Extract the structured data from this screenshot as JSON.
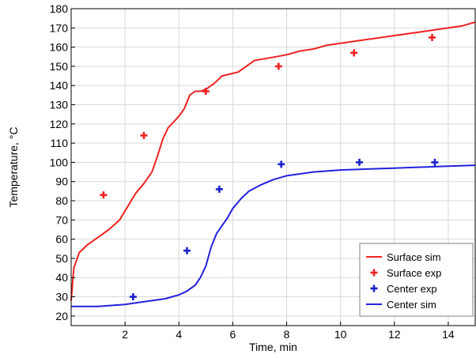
{
  "chart_data": {
    "type": "line",
    "title": "",
    "xlabel": "Time, min",
    "ylabel": "Temperature, °C",
    "xlim": [
      0,
      15
    ],
    "ylim": [
      15,
      180
    ],
    "xticks": [
      2,
      4,
      6,
      8,
      10,
      12,
      14
    ],
    "yticks": [
      20,
      30,
      40,
      50,
      60,
      70,
      80,
      90,
      100,
      110,
      120,
      130,
      140,
      150,
      160,
      170,
      180
    ],
    "grid": true,
    "legend_position": "bottom-right",
    "series": [
      {
        "name": "Surface sim",
        "kind": "line",
        "color": "#ee2222",
        "x": [
          0,
          0.1,
          0.3,
          0.6,
          1.0,
          1.4,
          1.8,
          2.1,
          2.4,
          2.7,
          3.0,
          3.2,
          3.4,
          3.6,
          3.8,
          4.0,
          4.2,
          4.4,
          4.6,
          4.8,
          5.0,
          5.3,
          5.6,
          5.9,
          6.2,
          6.5,
          6.8,
          7.2,
          7.6,
          8.0,
          8.5,
          9.0,
          9.5,
          10.0,
          10.5,
          11.0,
          11.5,
          12.0,
          12.5,
          13.0,
          13.5,
          14.0,
          14.5,
          15.0
        ],
        "y": [
          28,
          45,
          53,
          57,
          61,
          65,
          70,
          77,
          84,
          89,
          95,
          103,
          112,
          118,
          121,
          124,
          128,
          135,
          137,
          137,
          138,
          141,
          145,
          146,
          147,
          150,
          153,
          154,
          155,
          156,
          158,
          159,
          161,
          162,
          163,
          164,
          165,
          166,
          167,
          168,
          169,
          170,
          171,
          173
        ]
      },
      {
        "name": "Surface exp",
        "kind": "scatter",
        "color": "#ee2222",
        "x": [
          1.2,
          2.7,
          5.0,
          7.7,
          10.5,
          13.4
        ],
        "y": [
          83,
          114,
          137,
          150,
          157,
          165
        ]
      },
      {
        "name": "Center exp",
        "kind": "scatter",
        "color": "#1a22cc",
        "x": [
          2.3,
          4.3,
          5.5,
          7.8,
          10.7,
          13.5
        ],
        "y": [
          30,
          54,
          86,
          99,
          100,
          100
        ]
      },
      {
        "name": "Center sim",
        "kind": "line",
        "color": "#2222dd",
        "x": [
          0,
          1.0,
          2.0,
          2.5,
          3.0,
          3.5,
          4.0,
          4.3,
          4.6,
          4.8,
          5.0,
          5.2,
          5.4,
          5.6,
          5.8,
          6.0,
          6.3,
          6.6,
          7.0,
          7.5,
          8.0,
          8.5,
          9.0,
          10.0,
          11.0,
          12.0,
          13.0,
          14.0,
          15.0
        ],
        "y": [
          25,
          25,
          26,
          27,
          28,
          29,
          31,
          33,
          36,
          40,
          46,
          56,
          63,
          67,
          71,
          76,
          81,
          85,
          88,
          91,
          93,
          94,
          95,
          96,
          96.5,
          97,
          97.5,
          98,
          98.5
        ]
      }
    ]
  }
}
